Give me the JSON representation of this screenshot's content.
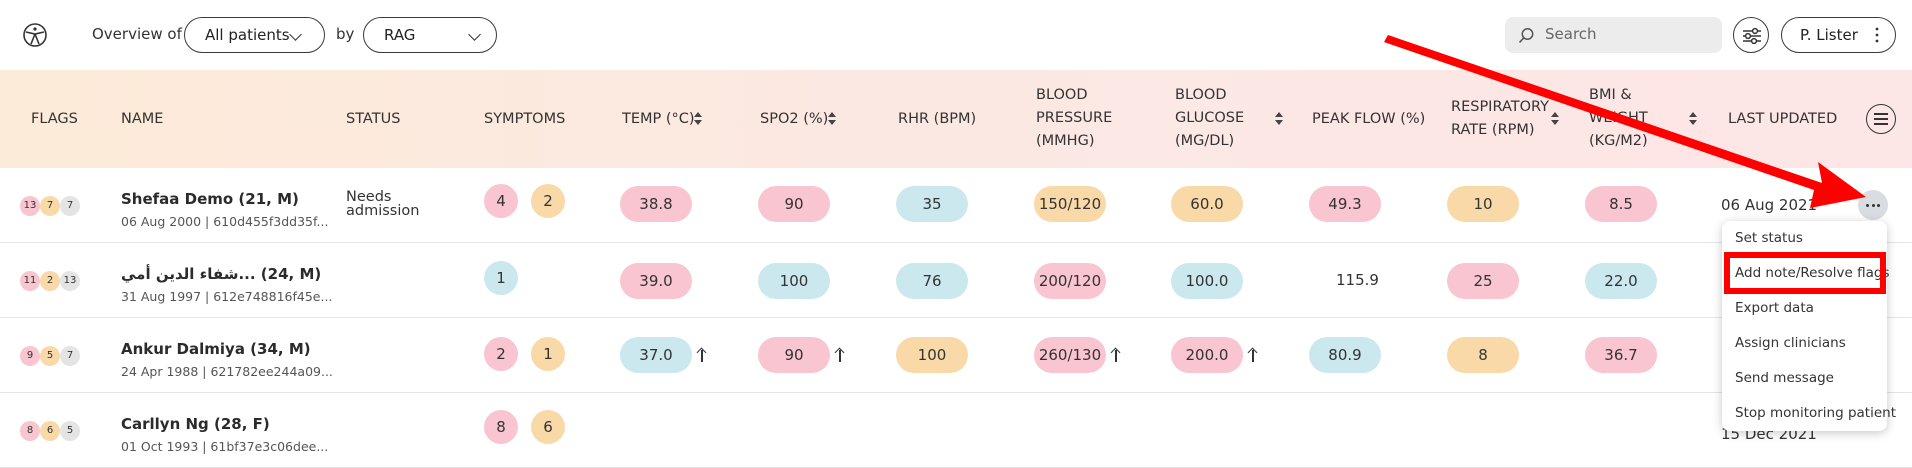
{
  "topbar": {
    "overview_label": "Overview of",
    "patients_select": "All patients",
    "by_label": "by",
    "view_select": "RAG",
    "search_placeholder": "Search",
    "user_name": "P. Lister"
  },
  "table": {
    "headers": {
      "flags": "FLAGS",
      "name": "NAME",
      "status": "STATUS",
      "symptoms": "SYMPTOMS",
      "temp": "TEMP (°C)",
      "spo2": "SPO2 (%)",
      "rhr": "RHR (BPM)",
      "bp_1": "BLOOD",
      "bp_2": "PRESSURE",
      "bp_3": "(MMHG)",
      "bg_1": "BLOOD",
      "bg_2": "GLUCOSE",
      "bg_3": "(MG/DL)",
      "peak": "PEAK FLOW (%)",
      "rr_1": "RESPIRATORY",
      "rr_2": "RATE (RPM)",
      "bmi_1": "BMI &",
      "bmi_2": "WEIGHT",
      "bmi_3": "(KG/M2)",
      "last": "LAST UPDATED"
    },
    "rows": [
      {
        "flags": [
          "13",
          "7",
          "7"
        ],
        "name": "Shefaa Demo (21, M)",
        "sub": "06 Aug 2000 | 610d455f3dd35f...",
        "status_1": "Needs",
        "status_2": "admission",
        "symptoms": [
          "4",
          "2"
        ],
        "temp": "38.8",
        "spo2": "90",
        "rhr": "35",
        "bp": "150/120",
        "bg": "60.0",
        "peak": "49.3",
        "rr": "10",
        "bmi": "8.5",
        "last": "06 Aug 2021"
      },
      {
        "flags": [
          "11",
          "2",
          "13"
        ],
        "name": "شفاء الدين أمي... (24, M)",
        "sub": "31 Aug 1997 | 612e748816f45e...",
        "symptoms": [
          "1"
        ],
        "temp": "39.0",
        "spo2": "100",
        "rhr": "76",
        "bp": "200/120",
        "bg": "100.0",
        "peak": "115.9",
        "rr": "25",
        "bmi": "22.0"
      },
      {
        "flags": [
          "9",
          "5",
          "7"
        ],
        "name": "Ankur Dalmiya (34, M)",
        "sub": "24 Apr 1988 | 621782ee244a09...",
        "symptoms": [
          "2",
          "1"
        ],
        "temp": "37.0",
        "spo2": "90",
        "rhr": "100",
        "bp": "260/130",
        "bg": "200.0",
        "peak": "80.9",
        "rr": "8",
        "bmi": "36.7"
      },
      {
        "flags": [
          "8",
          "6",
          "5"
        ],
        "name": "Carllyn Ng (28, F)",
        "sub": "01 Oct 1993 | 61bf37e3c06dee...",
        "symptoms": [
          "8",
          "6"
        ],
        "last": "15 Dec 2021"
      }
    ]
  },
  "context_menu": {
    "items": [
      "Set status",
      "Add note/Resolve flags",
      "Export data",
      "Assign clinicians",
      "Send message",
      "Stop monitoring patient"
    ]
  },
  "colors": {
    "red_pill": "#f8c5d0",
    "amber_pill": "#f9d9a8",
    "blue_pill": "#cbe8ee",
    "annotation": "#ff0000"
  }
}
